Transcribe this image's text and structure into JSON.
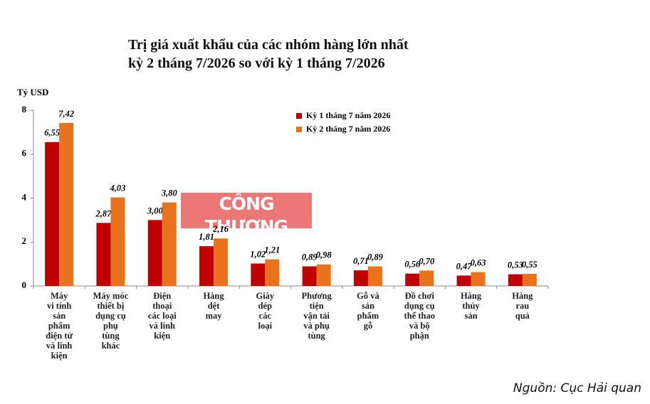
{
  "chart_data": {
    "type": "bar",
    "title": "Trị giá xuất khẩu của các nhóm hàng lớn nhất\nkỳ 2 tháng 7/2026 so với kỳ 1 tháng 7/2026",
    "y_label": "Tỷ USD",
    "categories": [
      "Máy\nvi tính\nsản\nphẩm\nđiện tử\nvà linh\nkiện",
      "Máy móc\nthiết bị\ndụng cụ\nphụ\ntùng\nkhác",
      "Điện\nthoại\ncác loại\nvà linh\nkiện",
      "Hàng\ndệt\nmay",
      "Giày\ndép\ncác\nloại",
      "Phương\ntiện\nvận tải\nvà phụ\ntùng",
      "Gỗ và\nsản\nphẩm\ngỗ",
      "Đồ chơi\ndụng cụ\nthể thao\nvà bộ\nphận",
      "Hàng\nthủy\nsản",
      "Hàng\nrau\nquả"
    ],
    "series": [
      {
        "name": "Kỳ 1 tháng 7 năm 2026",
        "color": "#c00000",
        "values": [
          6.55,
          2.87,
          3.0,
          1.81,
          1.02,
          0.89,
          0.71,
          0.56,
          0.47,
          0.53
        ],
        "value_labels": [
          "6,55",
          "2,87",
          "3,00",
          "1,81",
          "1,02",
          "0,89",
          "0,71",
          "0,56",
          "0,47",
          "0,53"
        ]
      },
      {
        "name": "Kỳ 2 tháng 7 năm 2026",
        "color": "#e8731c",
        "values": [
          7.42,
          4.03,
          3.8,
          2.16,
          1.21,
          0.98,
          0.89,
          0.7,
          0.63,
          0.55
        ],
        "value_labels": [
          "7,42",
          "4,03",
          "3,80",
          "2,16",
          "1,21",
          "0,98",
          "0,89",
          "0,70",
          "0,63",
          "0,55"
        ]
      }
    ],
    "ylim": [
      0,
      8
    ],
    "yticks": [
      0,
      2,
      4,
      6,
      8
    ],
    "watermark": "CÔNG THƯƠNG",
    "watermark_url": "WWW.TAPCHICONGTHUONG.VN",
    "source": "Nguồn: Cục Hải quan"
  }
}
